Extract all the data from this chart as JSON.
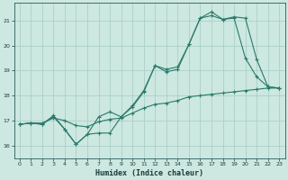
{
  "xlabel": "Humidex (Indice chaleur)",
  "bg_color": "#cce8e0",
  "grid_color": "#aacfc8",
  "line_color": "#2a7a6a",
  "xlim": [
    -0.5,
    23.5
  ],
  "ylim": [
    15.5,
    21.7
  ],
  "xticks": [
    0,
    1,
    2,
    3,
    4,
    5,
    6,
    7,
    8,
    9,
    10,
    11,
    12,
    13,
    14,
    15,
    16,
    17,
    18,
    19,
    20,
    21,
    22,
    23
  ],
  "yticks": [
    16,
    17,
    18,
    19,
    20,
    21
  ],
  "line1_x": [
    0,
    1,
    2,
    3,
    4,
    5,
    6,
    7,
    8,
    9,
    10,
    11,
    12,
    13,
    14,
    15,
    16,
    17,
    18,
    19,
    20,
    21,
    22,
    23
  ],
  "line1_y": [
    16.85,
    16.9,
    16.85,
    17.15,
    16.65,
    16.05,
    16.45,
    16.5,
    16.5,
    17.15,
    17.55,
    18.15,
    19.2,
    18.95,
    19.05,
    20.05,
    21.1,
    21.2,
    21.05,
    21.1,
    19.5,
    18.75,
    18.35,
    18.3
  ],
  "line2_x": [
    0,
    1,
    2,
    3,
    4,
    5,
    6,
    7,
    8,
    9,
    10,
    11,
    12,
    13,
    14,
    15,
    16,
    17,
    18,
    19,
    20,
    21,
    22,
    23
  ],
  "line2_y": [
    16.85,
    16.9,
    16.85,
    17.2,
    16.65,
    16.05,
    16.45,
    17.15,
    17.35,
    17.15,
    17.6,
    18.2,
    19.2,
    19.05,
    19.15,
    20.05,
    21.1,
    21.35,
    21.05,
    21.15,
    21.1,
    19.45,
    18.35,
    18.3
  ],
  "line3_x": [
    0,
    1,
    2,
    3,
    4,
    5,
    6,
    7,
    8,
    9,
    10,
    11,
    12,
    13,
    14,
    15,
    16,
    17,
    18,
    19,
    20,
    21,
    22,
    23
  ],
  "line3_y": [
    16.85,
    16.9,
    16.9,
    17.1,
    17.0,
    16.8,
    16.75,
    16.95,
    17.05,
    17.1,
    17.3,
    17.5,
    17.65,
    17.7,
    17.8,
    17.95,
    18.0,
    18.05,
    18.1,
    18.15,
    18.2,
    18.25,
    18.3,
    18.3
  ]
}
